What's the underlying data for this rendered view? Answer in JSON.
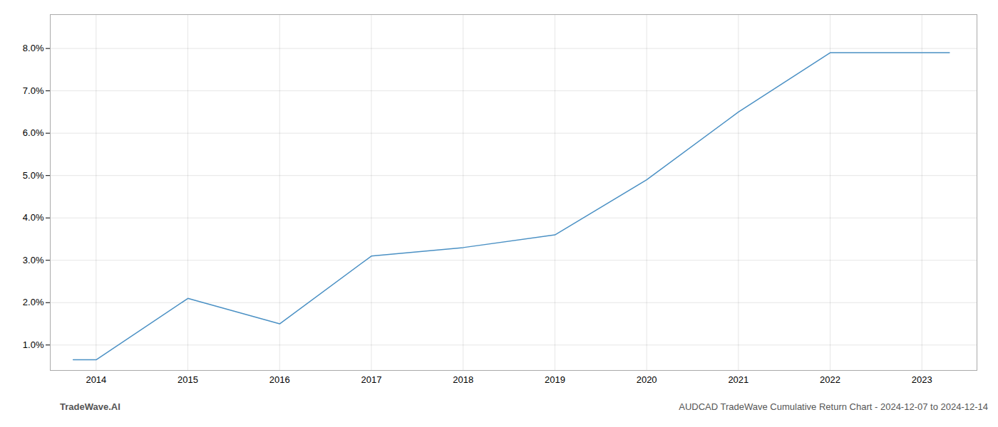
{
  "chart_data": {
    "type": "line",
    "x": [
      2013.75,
      2014,
      2015,
      2016,
      2017,
      2018,
      2019,
      2020,
      2021,
      2022,
      2023,
      2023.3
    ],
    "values": [
      0.0065,
      0.0065,
      0.021,
      0.015,
      0.031,
      0.033,
      0.036,
      0.049,
      0.065,
      0.079,
      0.079,
      0.079
    ],
    "color": "#4a90c4",
    "xlim": [
      2013.5,
      2023.6
    ],
    "xticks": [
      2014,
      2015,
      2016,
      2017,
      2018,
      2019,
      2020,
      2021,
      2022,
      2023
    ],
    "ylim": [
      0.004,
      0.088
    ],
    "yticks": [
      {
        "value": 0.01,
        "label": "1.0%"
      },
      {
        "value": 0.02,
        "label": "2.0%"
      },
      {
        "value": 0.03,
        "label": "3.0%"
      },
      {
        "value": 0.04,
        "label": "4.0%"
      },
      {
        "value": 0.05,
        "label": "5.0%"
      },
      {
        "value": 0.06,
        "label": "6.0%"
      },
      {
        "value": 0.07,
        "label": "7.0%"
      },
      {
        "value": 0.08,
        "label": "8.0%"
      }
    ],
    "grid": true,
    "annotations": [
      "TradeWave.AI",
      "AUDCAD TradeWave Cumulative Return Chart - 2024-12-07 to 2024-12-14"
    ]
  }
}
